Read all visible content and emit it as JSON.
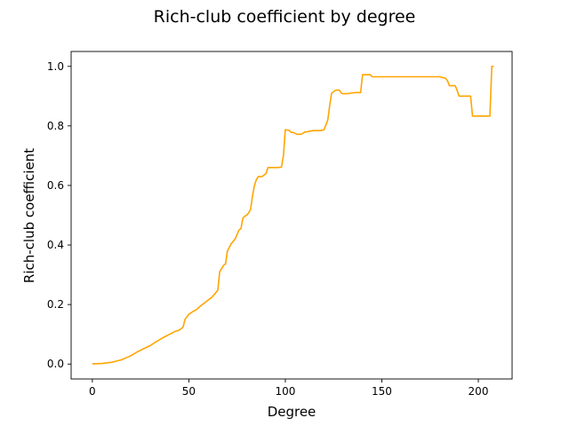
{
  "chart_data": {
    "type": "line",
    "title": "Rich-club coefficient by degree",
    "xlabel": "Degree",
    "ylabel": "Rich-club coefficient",
    "xlim": [
      -11,
      217.5
    ],
    "ylim": [
      -0.05,
      1.05
    ],
    "xticks": [
      0,
      50,
      100,
      150,
      200
    ],
    "yticks": [
      0.0,
      0.2,
      0.4,
      0.6,
      0.8,
      1.0
    ],
    "xtick_labels": [
      "0",
      "50",
      "100",
      "150",
      "200"
    ],
    "ytick_labels": [
      "0.0",
      "0.2",
      "0.4",
      "0.6",
      "0.8",
      "1.0"
    ],
    "grid": false,
    "series": [
      {
        "color": "#FFA500",
        "x": [
          0,
          5,
          10,
          15,
          20,
          23,
          26,
          30,
          33,
          37,
          40,
          43,
          45,
          47,
          48,
          50,
          52,
          54,
          56,
          58,
          60,
          62,
          64,
          65,
          66,
          68,
          69,
          70,
          72,
          74,
          76,
          77,
          78,
          79,
          80,
          81,
          82,
          83,
          84,
          85,
          86,
          88,
          90,
          91,
          93,
          96,
          98,
          99,
          100,
          102,
          103,
          104,
          106,
          108,
          109,
          110,
          112,
          114,
          116,
          118,
          120,
          122,
          123,
          124,
          126,
          128,
          129,
          130,
          132,
          134,
          136,
          139,
          140,
          142,
          144,
          145,
          146,
          148,
          150,
          160,
          170,
          180,
          183,
          184,
          185,
          186,
          188,
          189,
          190,
          192,
          194,
          196,
          197,
          198,
          200,
          202,
          204,
          206,
          207,
          208
        ],
        "y": [
          0.001,
          0.002,
          0.006,
          0.014,
          0.028,
          0.04,
          0.05,
          0.062,
          0.075,
          0.09,
          0.1,
          0.11,
          0.114,
          0.124,
          0.15,
          0.167,
          0.176,
          0.183,
          0.195,
          0.205,
          0.215,
          0.225,
          0.24,
          0.248,
          0.31,
          0.332,
          0.337,
          0.38,
          0.405,
          0.42,
          0.45,
          0.455,
          0.49,
          0.497,
          0.5,
          0.508,
          0.52,
          0.565,
          0.6,
          0.62,
          0.63,
          0.63,
          0.64,
          0.66,
          0.66,
          0.66,
          0.662,
          0.7,
          0.787,
          0.785,
          0.778,
          0.778,
          0.772,
          0.772,
          0.775,
          0.779,
          0.781,
          0.784,
          0.784,
          0.784,
          0.787,
          0.82,
          0.87,
          0.91,
          0.92,
          0.92,
          0.91,
          0.908,
          0.908,
          0.91,
          0.912,
          0.912,
          0.972,
          0.972,
          0.972,
          0.965,
          0.965,
          0.965,
          0.965,
          0.965,
          0.965,
          0.965,
          0.96,
          0.952,
          0.935,
          0.935,
          0.935,
          0.92,
          0.9,
          0.9,
          0.9,
          0.9,
          0.833,
          0.833,
          0.833,
          0.833,
          0.833,
          0.833,
          1.0,
          1.0
        ]
      }
    ]
  }
}
